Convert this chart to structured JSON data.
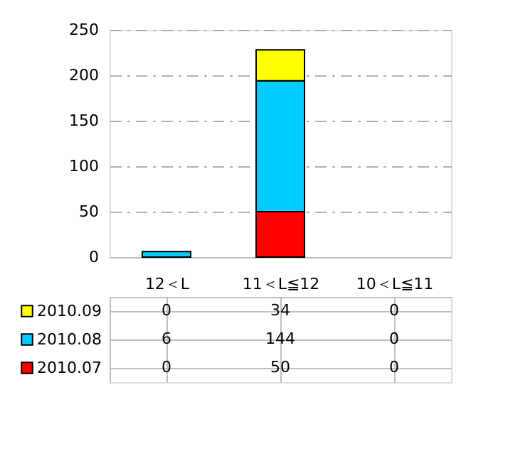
{
  "chart_data": {
    "type": "bar",
    "stacked": true,
    "categories": [
      "12＜L",
      "11＜L≦12",
      "10＜L≦11"
    ],
    "series": [
      {
        "name": "2010.07",
        "color": "#ff0000",
        "values": [
          0,
          50,
          0
        ]
      },
      {
        "name": "2010.08",
        "color": "#00ccff",
        "values": [
          6,
          144,
          0
        ]
      },
      {
        "name": "2010.09",
        "color": "#ffff00",
        "values": [
          0,
          34,
          0
        ]
      }
    ],
    "ylim": [
      0,
      250
    ],
    "yticks": [
      0,
      50,
      100,
      150,
      200,
      250
    ],
    "grid": "y",
    "data_labels": true,
    "legend": "bottom"
  }
}
